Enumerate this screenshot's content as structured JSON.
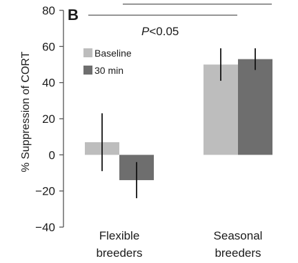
{
  "chart_data": {
    "type": "bar",
    "panel_label": "B",
    "ylabel": "% Suppression of CORT",
    "xlabel": "",
    "ylim": [
      -40,
      80
    ],
    "yticks": [
      -40,
      -20,
      0,
      20,
      40,
      60,
      80
    ],
    "ytick_labels": [
      "−40",
      "−20",
      "0",
      "20",
      "40",
      "60",
      "80"
    ],
    "categories": [
      [
        "Flexible",
        "breeders"
      ],
      [
        "Seasonal",
        "breeders"
      ]
    ],
    "series": [
      {
        "name": "Baseline",
        "color": "#bdbdbd",
        "values": [
          7,
          50
        ],
        "error": [
          [
            -9,
            23
          ],
          [
            41,
            59
          ]
        ]
      },
      {
        "name": "30 min",
        "color": "#6e6e6e",
        "values": [
          -14,
          53
        ],
        "error": [
          [
            -24,
            -4
          ],
          [
            47,
            59
          ]
        ]
      }
    ],
    "legend_position": "top-left",
    "annotation": {
      "italic": "P",
      "rest": "<0.05"
    },
    "grid": false
  }
}
